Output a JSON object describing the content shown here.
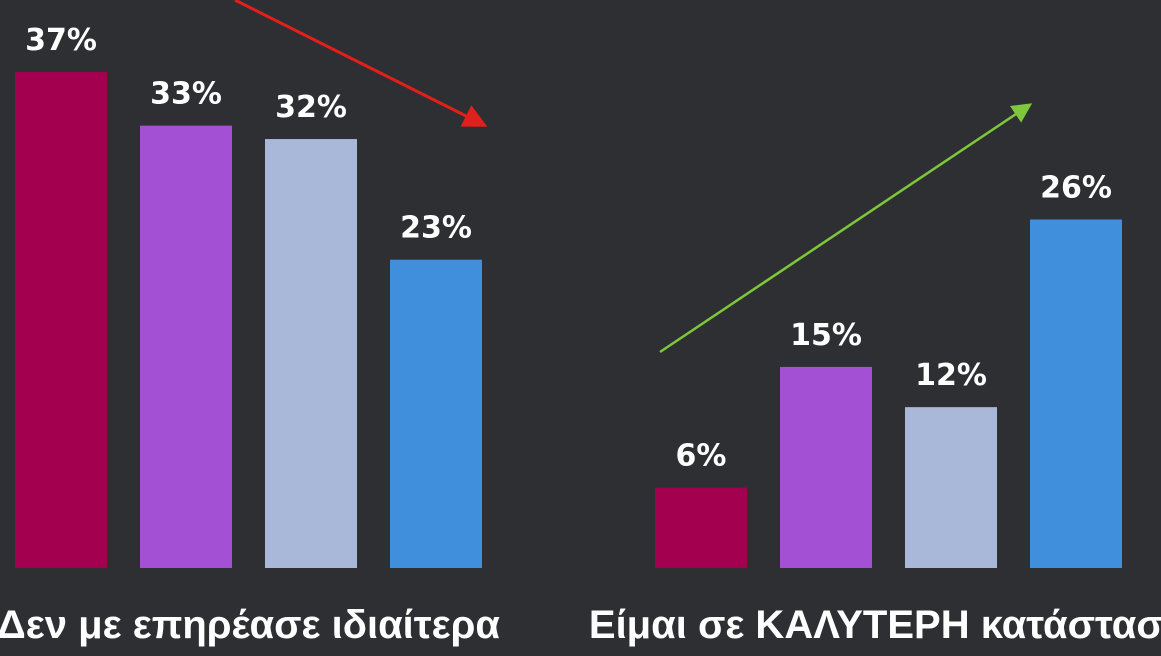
{
  "chart_data": {
    "type": "bar",
    "categories": [
      "Δεν με επηρέασε ιδιαίτερα",
      "Είμαι σε ΚΑΛΥΤΕΡΗ κατάσταση"
    ],
    "series": [
      {
        "color": "#a3004f",
        "values": [
          37,
          6
        ],
        "value_labels": [
          "37%",
          "6%"
        ]
      },
      {
        "color": "#a450d4",
        "values": [
          33,
          15
        ],
        "value_labels": [
          "33%",
          "15%"
        ]
      },
      {
        "color": "#a9b7d9",
        "values": [
          32,
          12
        ],
        "value_labels": [
          "32%",
          "12%"
        ]
      },
      {
        "color": "#3f8fdc",
        "values": [
          23,
          26
        ],
        "value_labels": [
          "23%",
          "26%"
        ]
      }
    ],
    "ylim": [
      0,
      42
    ]
  }
}
